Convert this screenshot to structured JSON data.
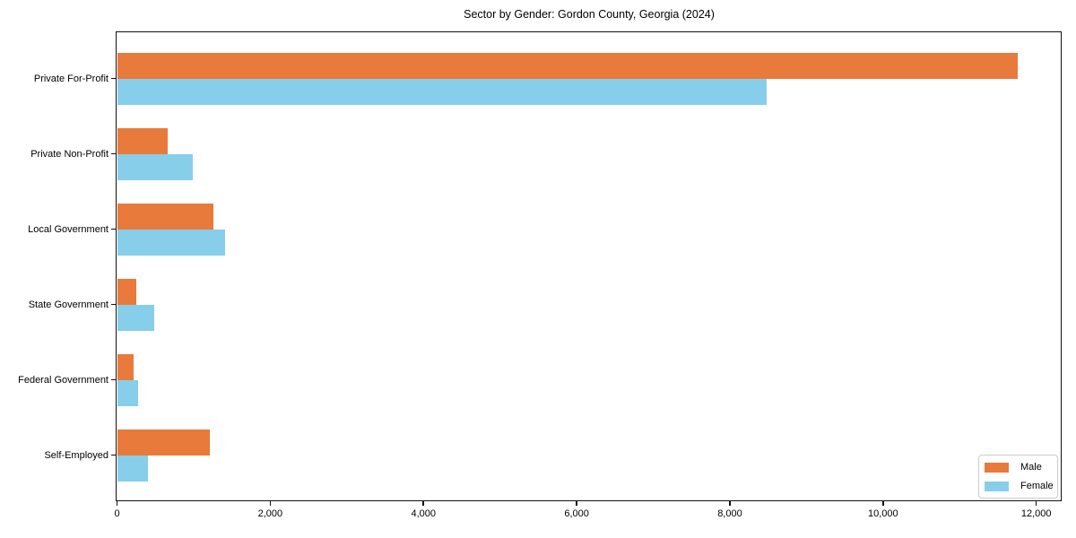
{
  "chart_data": {
    "type": "bar",
    "orientation": "horizontal",
    "title": "Sector by Gender: Gordon County, Georgia (2024)",
    "categories": [
      "Private For-Profit",
      "Private Non-Profit",
      "Local Government",
      "State Government",
      "Federal Government",
      "Self-Employed"
    ],
    "series": [
      {
        "name": "Male",
        "color": "#e87a3c",
        "values": [
          11750,
          660,
          1250,
          240,
          210,
          1200
        ]
      },
      {
        "name": "Female",
        "color": "#87ceeb",
        "values": [
          8480,
          980,
          1410,
          480,
          270,
          400
        ]
      }
    ],
    "xlim": [
      0,
      12000
    ],
    "xticks": [
      0,
      2000,
      4000,
      6000,
      8000,
      10000,
      12000
    ],
    "xtick_labels": [
      "0",
      "2,000",
      "4,000",
      "6,000",
      "8,000",
      "10,000",
      "12,000"
    ],
    "grid": false,
    "legend": {
      "position": "lower right",
      "entries": [
        "Male",
        "Female"
      ]
    }
  }
}
